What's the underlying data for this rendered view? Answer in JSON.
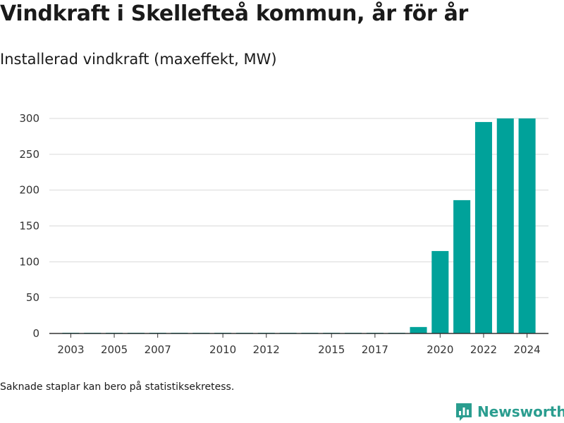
{
  "title": "Vindkraft i Skellefteå kommun, år för år",
  "subtitle": "Installerad vindkraft (maxeffekt, MW)",
  "footnote": "Saknade staplar kan bero på statistiksekretess.",
  "brand": {
    "name": "Newsworthy",
    "icon": "newsworthy-logo-icon",
    "color": "#2a9d8f"
  },
  "colors": {
    "bar": "#00a29a",
    "grid": "#d9d9d9",
    "axis": "#333333"
  },
  "chart_data": {
    "type": "bar",
    "title": "Vindkraft i Skellefteå kommun, år för år",
    "subtitle": "Installerad vindkraft (maxeffekt, MW)",
    "xlabel": "",
    "ylabel": "",
    "categories": [
      "2003",
      "2004",
      "2005",
      "2006",
      "2007",
      "2008",
      "2009",
      "2010",
      "2011",
      "2012",
      "2013",
      "2014",
      "2015",
      "2016",
      "2017",
      "2018",
      "2019",
      "2020",
      "2021",
      "2022",
      "2023",
      "2024"
    ],
    "values": [
      1,
      1,
      1,
      1,
      1,
      1,
      1,
      1,
      1,
      1,
      1,
      1,
      1,
      1,
      1,
      1,
      9,
      115,
      186,
      295,
      300,
      300
    ],
    "xticks": [
      "2003",
      "2005",
      "2007",
      "2010",
      "2012",
      "2015",
      "2017",
      "2020",
      "2022",
      "2024"
    ],
    "yticks": [
      0,
      50,
      100,
      150,
      200,
      250,
      300
    ],
    "ylim": [
      0,
      300
    ],
    "grid": true,
    "legend": "none"
  }
}
